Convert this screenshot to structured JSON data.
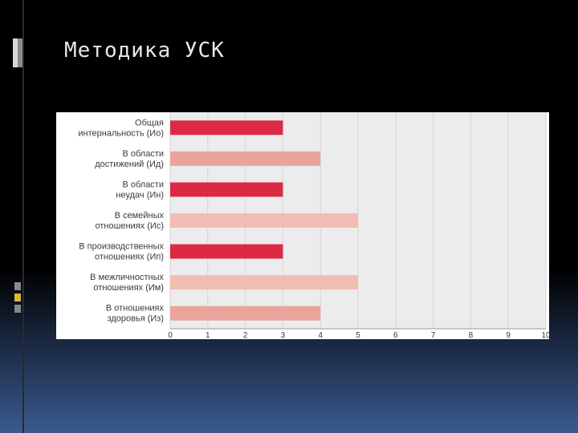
{
  "slide": {
    "title": "Методика УСК"
  },
  "colors": {
    "background": "#000000",
    "plot_background": "#ececec",
    "bar_dark": "#dd2a44",
    "bar_mid": "#eba49b",
    "bar_light": "#f1bdb3"
  },
  "chart_data": {
    "type": "bar",
    "orientation": "horizontal",
    "categories": [
      [
        "Общая",
        "интернальность (Ио)"
      ],
      [
        "В области",
        "достижений (Ид)"
      ],
      [
        "В области",
        "неудач (Ин)"
      ],
      [
        "В семейных",
        "отношениях (Ис)"
      ],
      [
        "В производственных",
        "отношениях (Ип)"
      ],
      [
        "В межличностных",
        "отношениях (Им)"
      ],
      [
        "В отношениях",
        "здоровья (Из)"
      ]
    ],
    "values": [
      3,
      4,
      3,
      5,
      3,
      5,
      4
    ],
    "bar_colors": [
      "#dd2a44",
      "#eba49b",
      "#dd2a44",
      "#f1bdb3",
      "#dd2a44",
      "#f1bdb3",
      "#eba49b"
    ],
    "x_ticks": [
      "0",
      "1",
      "2",
      "3",
      "4",
      "5",
      "6",
      "7",
      "8",
      "9",
      "10"
    ],
    "xlim": [
      0,
      10
    ],
    "grid": true
  }
}
